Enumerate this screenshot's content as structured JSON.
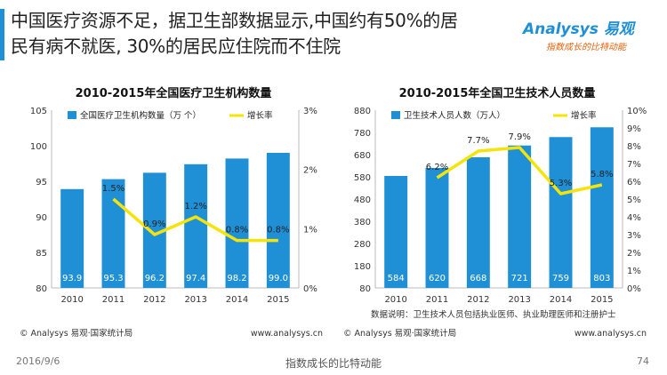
{
  "colors": {
    "accent": "#1f8fd6",
    "bar": "#1f8fd6",
    "line": "#f5e40a",
    "logo_brand": "#1f8fd6",
    "logo_sub": "#e8620a"
  },
  "header": {
    "line1": "中国医疗资源不足，据卫生部数据显示,中国约有50%的居",
    "line2": "民有病不就医, 30%的居民应住院而不住院"
  },
  "logo": {
    "brand": "Analysys 易观",
    "slogan": "指数成长的比特动能"
  },
  "footer": {
    "date": "2016/9/6",
    "slogan": "指数成长的比特动能",
    "page": "74"
  },
  "chart_data": [
    {
      "type": "bar",
      "title": "2010-2015年全国医疗卫生机构数量",
      "categories": [
        "2010",
        "2011",
        "2012",
        "2013",
        "2014",
        "2015"
      ],
      "series": [
        {
          "name": "全国医疗卫生机构数量（万 个）",
          "type": "bar",
          "axis": "left",
          "values": [
            93.9,
            95.3,
            96.2,
            97.4,
            98.2,
            99.0
          ],
          "labels": [
            "93.9",
            "95.3",
            "96.2",
            "97.4",
            "98.2",
            "99.0"
          ]
        },
        {
          "name": "增长率",
          "type": "line",
          "axis": "right",
          "values": [
            null,
            1.5,
            0.9,
            1.2,
            0.8,
            0.8
          ],
          "labels": [
            "",
            "1.5%",
            "0.9%",
            "1.2%",
            "0.8%",
            "0.8%"
          ]
        }
      ],
      "y_left": {
        "min": 80,
        "max": 105,
        "ticks": [
          "80",
          "85",
          "90",
          "95",
          "100",
          "105"
        ]
      },
      "y_right": {
        "min": 0,
        "max": 3,
        "ticks": [
          "0%",
          "1%",
          "2%",
          "3%"
        ]
      },
      "legend_position": "top",
      "note": "",
      "source": "© Analysys 易观·国家统计局",
      "site": "www.analysys.cn"
    },
    {
      "type": "bar",
      "title": "2010-2015年全国卫生技术人员数量",
      "categories": [
        "2010",
        "2011",
        "2012",
        "2013",
        "2014",
        "2015"
      ],
      "series": [
        {
          "name": "卫生技术人员人数（万人）",
          "type": "bar",
          "axis": "left",
          "values": [
            584,
            620,
            668,
            721,
            759,
            803
          ],
          "labels": [
            "584",
            "620",
            "668",
            "721",
            "759",
            "803"
          ]
        },
        {
          "name": "增长率",
          "type": "line",
          "axis": "right",
          "values": [
            null,
            6.2,
            7.7,
            7.9,
            5.3,
            5.8
          ],
          "labels": [
            "",
            "6.2%",
            "7.7%",
            "7.9%",
            "5.3%",
            "5.8%"
          ]
        }
      ],
      "y_left": {
        "min": 80,
        "max": 880,
        "ticks": [
          "80",
          "180",
          "280",
          "380",
          "480",
          "580",
          "680",
          "780",
          "880"
        ]
      },
      "y_right": {
        "min": 0,
        "max": 10,
        "ticks": [
          "0%",
          "1%",
          "2%",
          "3%",
          "4%",
          "5%",
          "6%",
          "7%",
          "8%",
          "9%",
          "10%"
        ]
      },
      "legend_position": "top",
      "note": "数据说明：卫生技术人员包括执业医师、执业助理医师和注册护士",
      "source": "© Analysys 易观·国家统计局",
      "site": "www.analysys.cn"
    }
  ]
}
